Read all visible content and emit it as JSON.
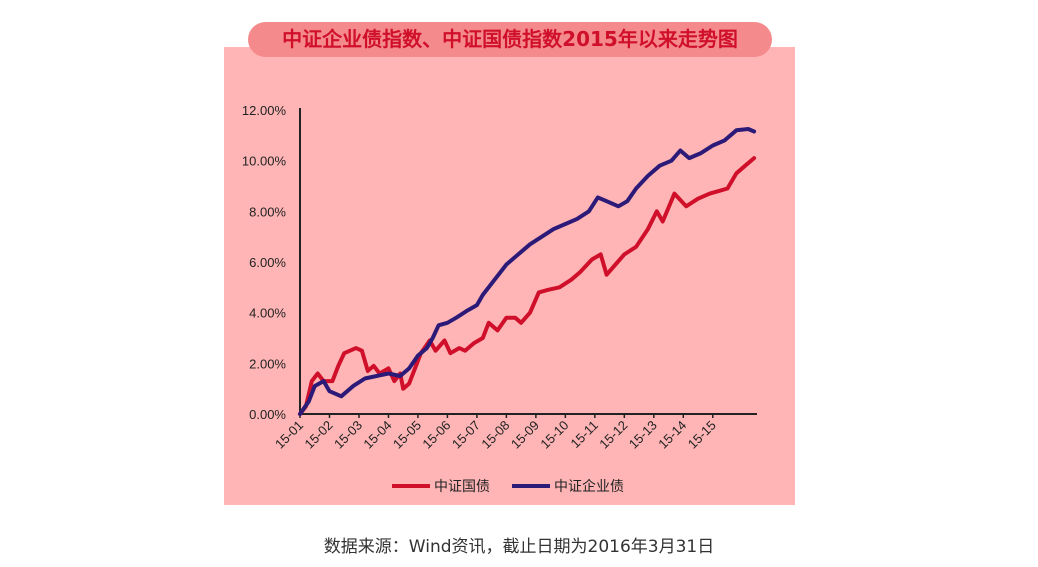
{
  "chart_data": {
    "type": "line",
    "title": "中证企业债指数、中证国债指数2015年以来走势图",
    "categories": [
      "15-01",
      "15-02",
      "15-03",
      "15-04",
      "15-05",
      "15-06",
      "15-07",
      "15-08",
      "15-09",
      "15-10",
      "15-11",
      "15-12",
      "15-13",
      "15-14",
      "15-15"
    ],
    "yticks": [
      "0.00%",
      "2.00%",
      "4.00%",
      "6.00%",
      "8.00%",
      "10.00%",
      "12.00%"
    ],
    "ylim": [
      0,
      12
    ],
    "xlim": [
      0,
      15.5
    ],
    "legend_position": "bottom",
    "series": [
      {
        "name": "中证国债",
        "color": "#d0102a",
        "points": [
          [
            0,
            0
          ],
          [
            0.2,
            0.3
          ],
          [
            0.4,
            1.3
          ],
          [
            0.6,
            1.6
          ],
          [
            0.8,
            1.3
          ],
          [
            1.1,
            1.3
          ],
          [
            1.3,
            1.9
          ],
          [
            1.5,
            2.4
          ],
          [
            1.9,
            2.6
          ],
          [
            2.1,
            2.5
          ],
          [
            2.3,
            1.7
          ],
          [
            2.5,
            1.9
          ],
          [
            2.7,
            1.6
          ],
          [
            3.0,
            1.8
          ],
          [
            3.2,
            1.3
          ],
          [
            3.4,
            1.6
          ],
          [
            3.5,
            1.0
          ],
          [
            3.7,
            1.2
          ],
          [
            3.9,
            1.8
          ],
          [
            4.1,
            2.4
          ],
          [
            4.4,
            2.9
          ],
          [
            4.6,
            2.5
          ],
          [
            4.9,
            2.9
          ],
          [
            5.1,
            2.4
          ],
          [
            5.4,
            2.6
          ],
          [
            5.6,
            2.5
          ],
          [
            5.9,
            2.8
          ],
          [
            6.2,
            3.0
          ],
          [
            6.4,
            3.6
          ],
          [
            6.7,
            3.3
          ],
          [
            7.0,
            3.8
          ],
          [
            7.3,
            3.8
          ],
          [
            7.5,
            3.6
          ],
          [
            7.8,
            4.0
          ],
          [
            8.1,
            4.8
          ],
          [
            8.4,
            4.9
          ],
          [
            8.8,
            5.0
          ],
          [
            9.2,
            5.3
          ],
          [
            9.5,
            5.6
          ],
          [
            9.9,
            6.1
          ],
          [
            10.2,
            6.3
          ],
          [
            10.4,
            5.5
          ],
          [
            10.7,
            5.9
          ],
          [
            11.0,
            6.3
          ],
          [
            11.4,
            6.6
          ],
          [
            11.8,
            7.3
          ],
          [
            12.1,
            8.0
          ],
          [
            12.3,
            7.6
          ],
          [
            12.7,
            8.7
          ],
          [
            13.1,
            8.2
          ],
          [
            13.5,
            8.5
          ],
          [
            13.9,
            8.7
          ],
          [
            14.2,
            8.8
          ],
          [
            14.5,
            8.9
          ],
          [
            14.8,
            9.5
          ],
          [
            15.1,
            9.8
          ],
          [
            15.4,
            10.1
          ]
        ]
      },
      {
        "name": "中证企业债",
        "color": "#2b1a78",
        "points": [
          [
            0,
            0
          ],
          [
            0.3,
            0.5
          ],
          [
            0.5,
            1.1
          ],
          [
            0.8,
            1.3
          ],
          [
            1.0,
            0.9
          ],
          [
            1.4,
            0.7
          ],
          [
            1.8,
            1.1
          ],
          [
            2.2,
            1.4
          ],
          [
            2.6,
            1.5
          ],
          [
            3.0,
            1.6
          ],
          [
            3.4,
            1.5
          ],
          [
            3.7,
            1.8
          ],
          [
            4.0,
            2.3
          ],
          [
            4.3,
            2.6
          ],
          [
            4.5,
            3.0
          ],
          [
            4.7,
            3.5
          ],
          [
            5.0,
            3.6
          ],
          [
            5.3,
            3.8
          ],
          [
            5.7,
            4.1
          ],
          [
            6.0,
            4.3
          ],
          [
            6.2,
            4.7
          ],
          [
            6.6,
            5.3
          ],
          [
            7.0,
            5.9
          ],
          [
            7.4,
            6.3
          ],
          [
            7.8,
            6.7
          ],
          [
            8.2,
            7.0
          ],
          [
            8.6,
            7.3
          ],
          [
            9.0,
            7.5
          ],
          [
            9.4,
            7.7
          ],
          [
            9.8,
            8.0
          ],
          [
            10.1,
            8.55
          ],
          [
            10.4,
            8.4
          ],
          [
            10.8,
            8.2
          ],
          [
            11.1,
            8.4
          ],
          [
            11.4,
            8.9
          ],
          [
            11.8,
            9.4
          ],
          [
            12.2,
            9.8
          ],
          [
            12.6,
            10.0
          ],
          [
            12.9,
            10.4
          ],
          [
            13.2,
            10.1
          ],
          [
            13.6,
            10.3
          ],
          [
            14.0,
            10.6
          ],
          [
            14.4,
            10.8
          ],
          [
            14.8,
            11.2
          ],
          [
            15.2,
            11.25
          ],
          [
            15.4,
            11.15
          ]
        ]
      }
    ]
  },
  "footer": "数据来源：Wind资讯，截止日期为2016年3月31日"
}
